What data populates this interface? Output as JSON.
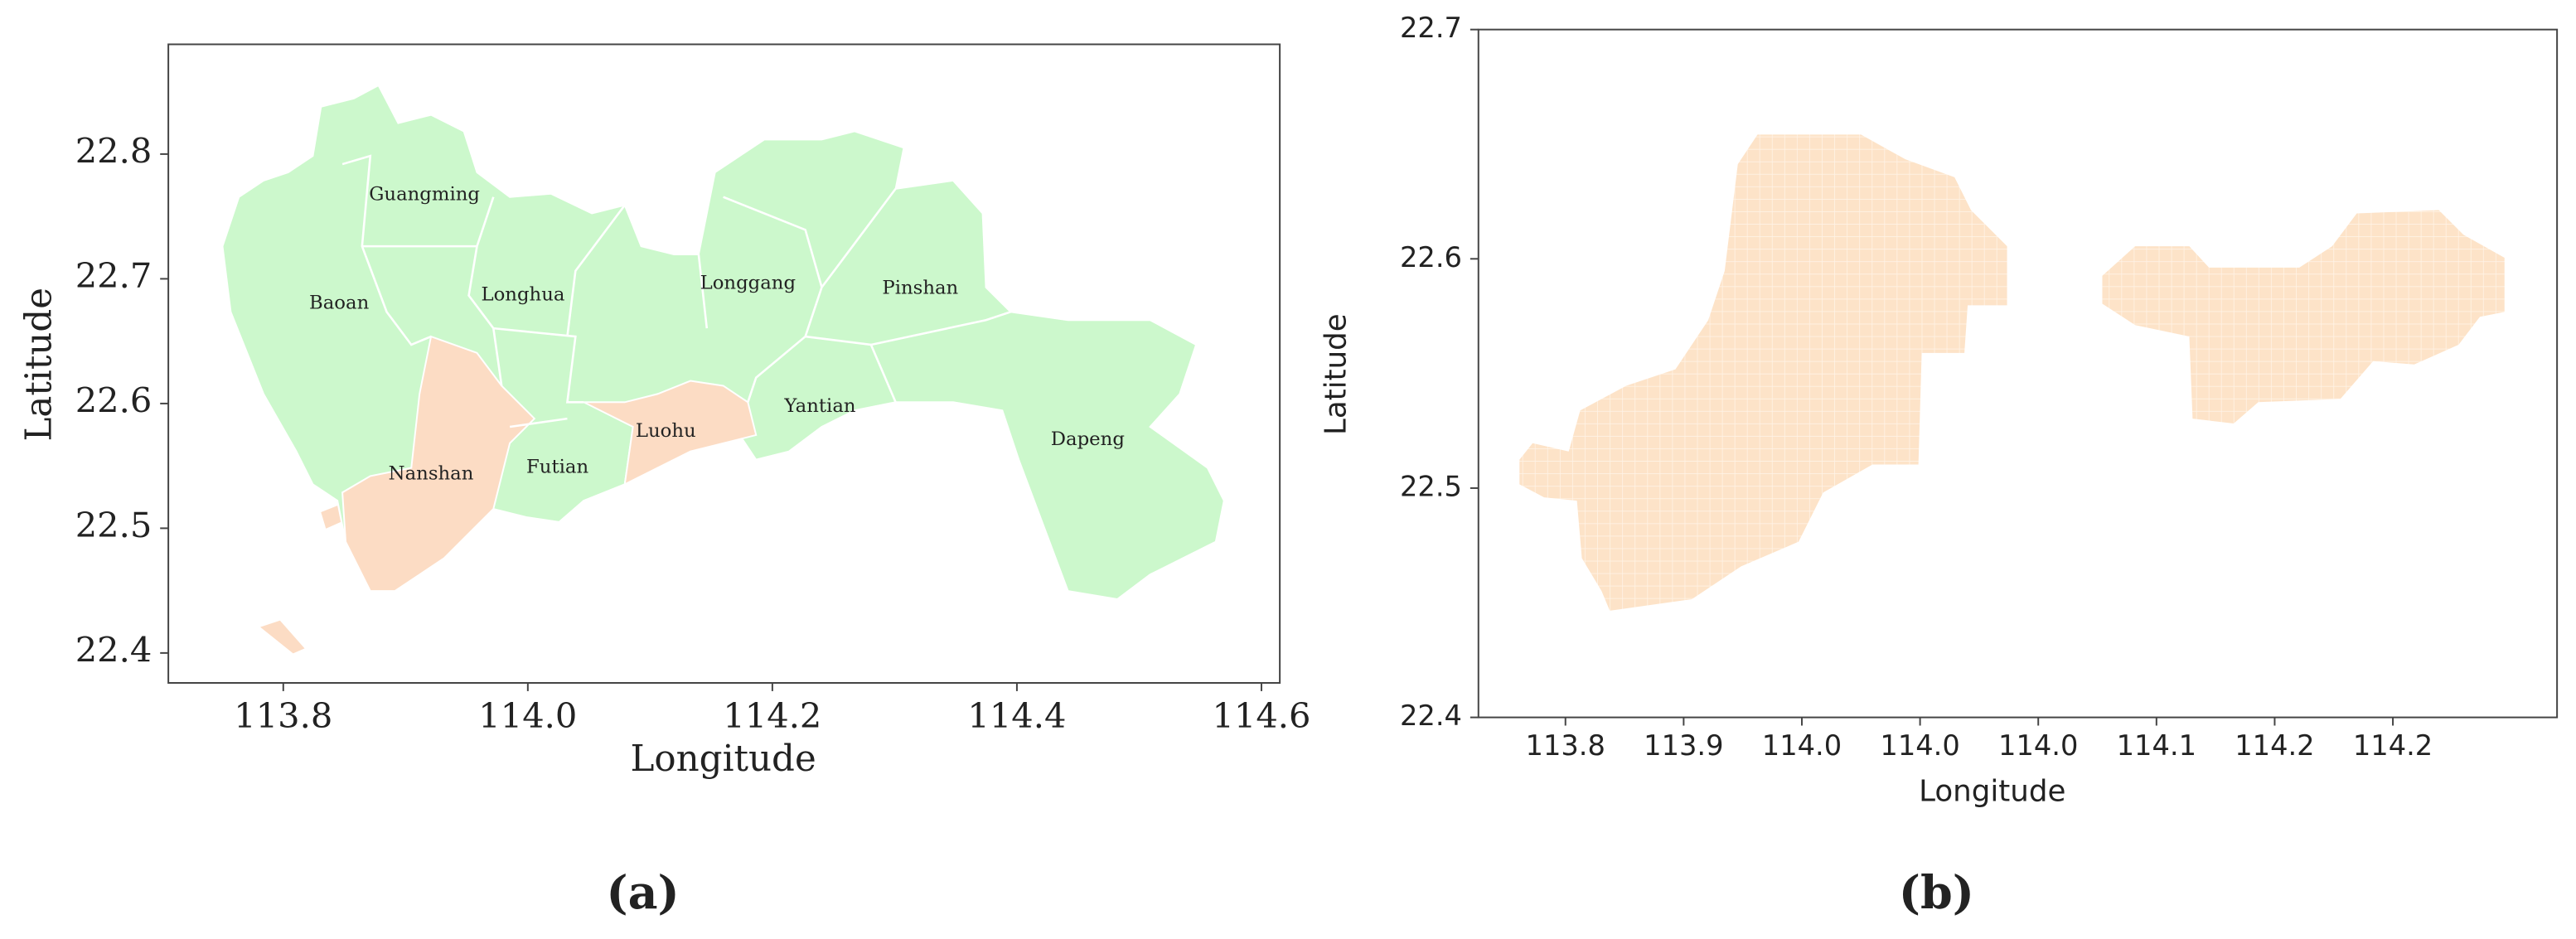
{
  "panels": [
    {
      "xlabel": "Longitude",
      "ylabel": "Latitude",
      "xlim": [
        113.706,
        114.615
      ],
      "ylim": [
        22.376,
        22.888
      ],
      "xticks": [
        113.8,
        {
          "value": 114,
          "label": "114.0"
        },
        114.2,
        114.4,
        114.6
      ],
      "yticks": [
        22.4,
        22.5,
        22.6,
        22.7,
        22.8
      ],
      "districts": [
        "Guangming",
        "Baoan",
        "Longhua",
        "Longgang",
        "Pinshan",
        "Yantian",
        "Luohu",
        "Futian",
        "Nanshan",
        "Dapeng"
      ],
      "caption": "(a)"
    },
    {
      "xlabel": "Longitude",
      "ylabel": "Latitude",
      "ylim": [
        22.4,
        22.7
      ],
      "yticks": [
        22.4,
        22.5,
        22.6,
        22.7
      ],
      "xtick_labels": [
        "113.8",
        "113.9",
        "114.0",
        "114.0",
        "114.0",
        "114.1",
        "114.2",
        "114.2"
      ],
      "caption": "(b)"
    }
  ]
}
